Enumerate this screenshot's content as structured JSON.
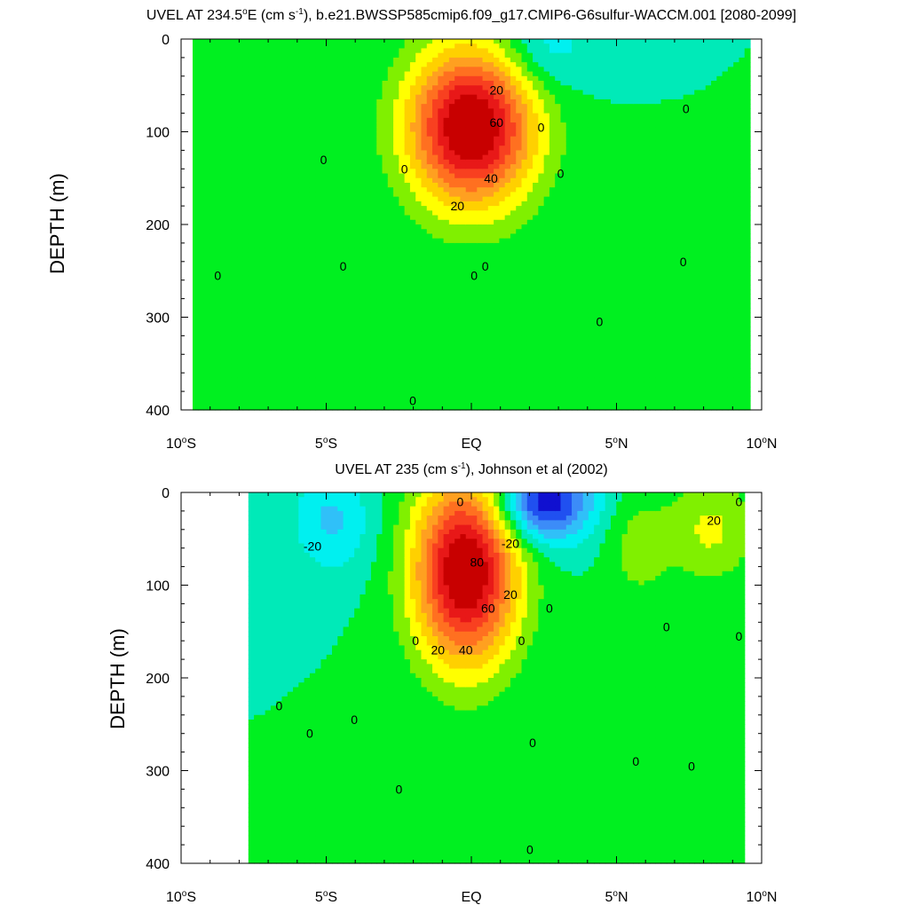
{
  "chart_data": [
    {
      "type": "contour",
      "title": "UVEL AT 234.5°E (cm s-1), b.e21.BWSSP585cmip6.f09_g17.CMIP6-G6sulfur-WACCM.001 [2080-2099]",
      "title_parts": {
        "a": "UVEL AT 234.5",
        "b": "o",
        "c": "E (cm s",
        "d": "-1",
        "e": "), b.e21.BWSSP585cmip6.f09_g17.CMIP6-G6sulfur-WACCM.001 [2080-2099]"
      },
      "ylabel": "DEPTH (m)",
      "xlim": [
        -10,
        10
      ],
      "ylim": [
        400,
        0
      ],
      "x_ticks": [
        {
          "v": -10,
          "num": "10",
          "deg": "o",
          "hem": "S"
        },
        {
          "v": -5,
          "num": "5",
          "deg": "o",
          "hem": "S"
        },
        {
          "v": 0,
          "num": "EQ",
          "deg": "",
          "hem": ""
        },
        {
          "v": 5,
          "num": "5",
          "deg": "o",
          "hem": "N"
        },
        {
          "v": 10,
          "num": "10",
          "deg": "o",
          "hem": "N"
        }
      ],
      "y_ticks": [
        {
          "v": 0,
          "label": "0"
        },
        {
          "v": 100,
          "label": "100"
        },
        {
          "v": 200,
          "label": "200"
        },
        {
          "v": 300,
          "label": "300"
        },
        {
          "v": 400,
          "label": "400"
        }
      ],
      "contour_interval": 10,
      "features": [
        {
          "type": "max",
          "x": 0.0,
          "y": 95,
          "amp": 95,
          "sx": 1.6,
          "sy": 60
        },
        {
          "type": "min",
          "x": 2.6,
          "y": 10,
          "amp": -18,
          "sx": 1.2,
          "sy": 35
        }
      ],
      "contour_labels": [
        {
          "x": 0.9,
          "y": 55,
          "text": "20"
        },
        {
          "x": 0.9,
          "y": 90,
          "text": "60"
        },
        {
          "x": 0.7,
          "y": 150,
          "text": "40"
        },
        {
          "x": -0.5,
          "y": 180,
          "text": "20"
        },
        {
          "x": 2.5,
          "y": 95,
          "text": "0"
        },
        {
          "x": 3.2,
          "y": 145,
          "text": "0"
        },
        {
          "x": -5.3,
          "y": 130,
          "text": "0"
        },
        {
          "x": -2.4,
          "y": 140,
          "text": "0"
        },
        {
          "x": -9.1,
          "y": 255,
          "text": "0"
        },
        {
          "x": -4.6,
          "y": 245,
          "text": "0"
        },
        {
          "x": 0.5,
          "y": 245,
          "text": "0"
        },
        {
          "x": 0.1,
          "y": 255,
          "text": "0"
        },
        {
          "x": 4.6,
          "y": 305,
          "text": "0"
        },
        {
          "x": 7.6,
          "y": 240,
          "text": "0"
        },
        {
          "x": 7.7,
          "y": 75,
          "text": "0"
        },
        {
          "x": -2.1,
          "y": 390,
          "text": "0"
        }
      ]
    },
    {
      "type": "contour",
      "title": "UVEL AT 235 (cm s-1), Johnson et al (2002)",
      "title_parts": {
        "a": "UVEL AT 235 (cm s",
        "d": "-1",
        "e": "), Johnson et al (2002)"
      },
      "ylabel": "DEPTH (m)",
      "xlim": [
        -10,
        10
      ],
      "ylim": [
        400,
        0
      ],
      "x_ticks": [
        {
          "v": -10,
          "num": "10",
          "deg": "o",
          "hem": "S"
        },
        {
          "v": -5,
          "num": "5",
          "deg": "o",
          "hem": "S"
        },
        {
          "v": 0,
          "num": "EQ",
          "deg": "",
          "hem": ""
        },
        {
          "v": 5,
          "num": "5",
          "deg": "o",
          "hem": "N"
        },
        {
          "v": 10,
          "num": "10",
          "deg": "o",
          "hem": "N"
        }
      ],
      "y_ticks": [
        {
          "v": 0,
          "label": "0"
        },
        {
          "v": 100,
          "label": "100"
        },
        {
          "v": 200,
          "label": "200"
        },
        {
          "v": 300,
          "label": "300"
        },
        {
          "v": 400,
          "label": "400"
        }
      ],
      "contour_interval": 10,
      "features": [
        {
          "type": "max",
          "x": -0.2,
          "y": 85,
          "amp": 95,
          "sx": 1.3,
          "sy": 70
        },
        {
          "type": "min",
          "x": 2.6,
          "y": 10,
          "amp": -60,
          "sx": 1.2,
          "sy": 30
        },
        {
          "type": "min",
          "x": -5.0,
          "y": 30,
          "amp": -22,
          "sx": 1.0,
          "sy": 40
        },
        {
          "type": "max",
          "x": 8.6,
          "y": 40,
          "amp": 22,
          "sx": 1.1,
          "sy": 40
        },
        {
          "type": "max",
          "x": 6.0,
          "y": 60,
          "amp": 15,
          "sx": 0.8,
          "sy": 40
        }
      ],
      "contour_labels": [
        {
          "x": -0.4,
          "y": 10,
          "text": "0"
        },
        {
          "x": -5.7,
          "y": 58,
          "text": "-20"
        },
        {
          "x": 1.4,
          "y": 55,
          "text": "-20"
        },
        {
          "x": 0.2,
          "y": 75,
          "text": "80"
        },
        {
          "x": 1.4,
          "y": 110,
          "text": "20"
        },
        {
          "x": 0.6,
          "y": 125,
          "text": "60"
        },
        {
          "x": -1.2,
          "y": 170,
          "text": "20"
        },
        {
          "x": -0.2,
          "y": 170,
          "text": "40"
        },
        {
          "x": -2.0,
          "y": 160,
          "text": "0"
        },
        {
          "x": 1.8,
          "y": 160,
          "text": "0"
        },
        {
          "x": 2.8,
          "y": 125,
          "text": "0"
        },
        {
          "x": 7.0,
          "y": 145,
          "text": "0"
        },
        {
          "x": 9.6,
          "y": 155,
          "text": "0"
        },
        {
          "x": 9.6,
          "y": 10,
          "text": "0"
        },
        {
          "x": 8.7,
          "y": 30,
          "text": "20"
        },
        {
          "x": -6.9,
          "y": 230,
          "text": "0"
        },
        {
          "x": -5.8,
          "y": 260,
          "text": "0"
        },
        {
          "x": -4.2,
          "y": 245,
          "text": "0"
        },
        {
          "x": 2.2,
          "y": 270,
          "text": "0"
        },
        {
          "x": 5.9,
          "y": 290,
          "text": "0"
        },
        {
          "x": 7.9,
          "y": 295,
          "text": "0"
        },
        {
          "x": -2.6,
          "y": 320,
          "text": "0"
        },
        {
          "x": 2.1,
          "y": 385,
          "text": "0"
        }
      ],
      "data_extent": {
        "x_min": -8.0,
        "x_max": 9.8
      }
    }
  ],
  "colors": {
    "levels": [
      "#1010d0",
      "#2050f0",
      "#3c8cf8",
      "#30c0f8",
      "#00f0f0",
      "#00eab8",
      "#00f020",
      "#80f000",
      "#ffff00",
      "#ffd000",
      "#ffa020",
      "#ff7020",
      "#f84020",
      "#e81818",
      "#c80000"
    ],
    "line": "#000000"
  }
}
